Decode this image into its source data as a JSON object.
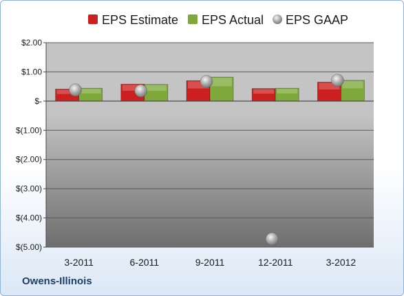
{
  "company": "Owens-Illinois",
  "colors": {
    "estimate": "#cc1f1f",
    "actual": "#7ea83a",
    "gaap": "#b5b5b5",
    "plot_bg_top": "#c4c4c4",
    "plot_bg_bottom": "#6e6e6e",
    "gridline": "#5a5a5a"
  },
  "chart_data": {
    "type": "bar",
    "title": "",
    "xlabel": "",
    "ylabel": "",
    "categories": [
      "3-2011",
      "6-2011",
      "9-2011",
      "12-2011",
      "3-2012"
    ],
    "series": [
      {
        "name": "EPS Estimate",
        "kind": "bar",
        "values": [
          0.41,
          0.58,
          0.7,
          0.43,
          0.65
        ]
      },
      {
        "name": "EPS Actual",
        "kind": "bar",
        "values": [
          0.44,
          0.57,
          0.82,
          0.44,
          0.71
        ]
      },
      {
        "name": "EPS GAAP",
        "kind": "marker",
        "values": [
          0.38,
          0.35,
          0.67,
          -4.72,
          0.71
        ]
      }
    ],
    "ylim": [
      -5,
      2
    ],
    "ytick_values": [
      2,
      1,
      0,
      -1,
      -2,
      -3,
      -4,
      -5
    ],
    "ytick_labels": [
      "$2.00",
      "$1.00",
      "$-",
      "$(1.00)",
      "$(2.00)",
      "$(3.00)",
      "$(4.00)",
      "$(5.00)"
    ],
    "grid": true,
    "legend_position": "top"
  }
}
